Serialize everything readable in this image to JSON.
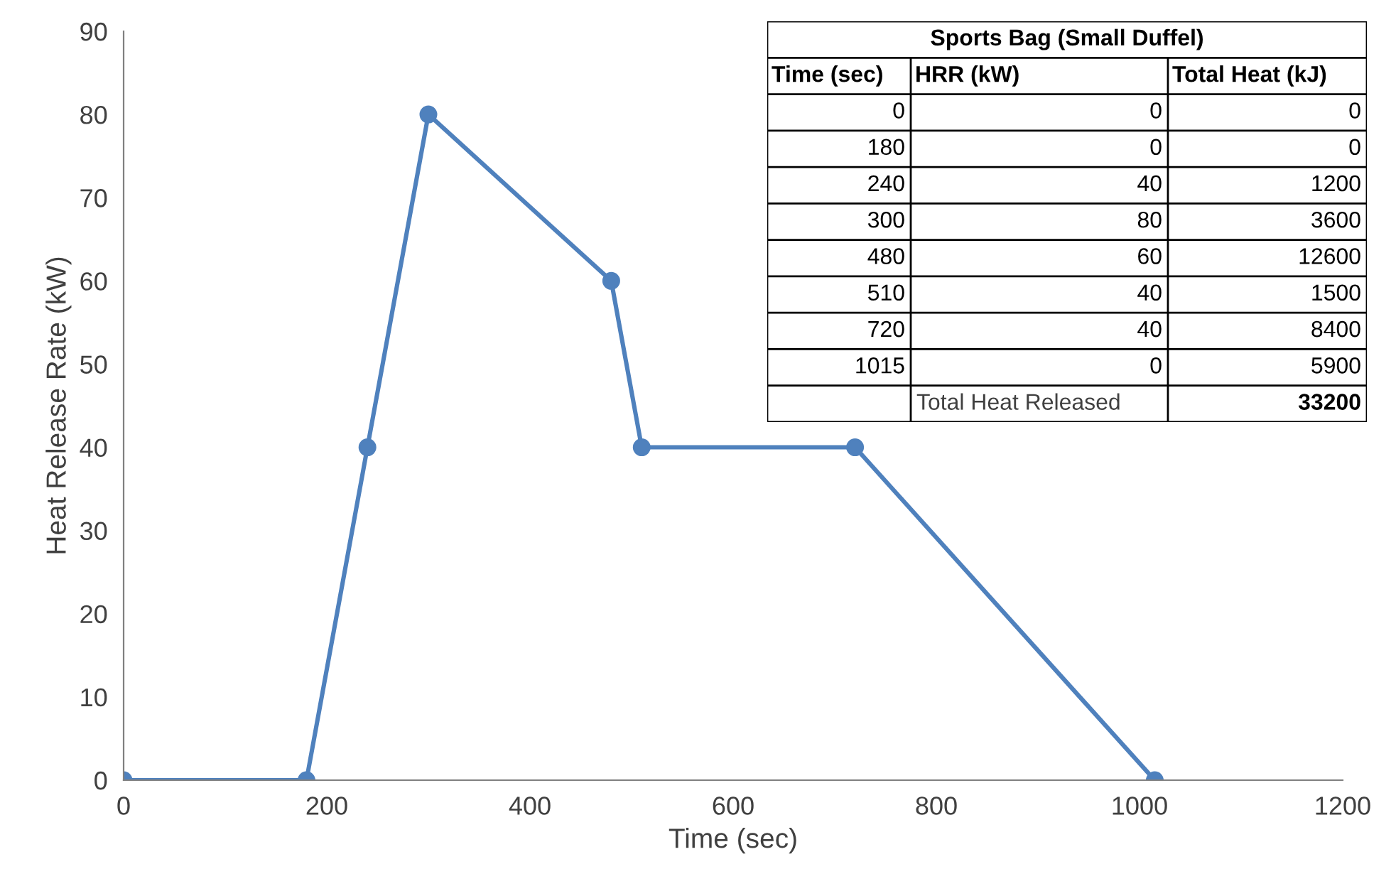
{
  "chart_data": {
    "type": "line",
    "xlabel": "Time (sec)",
    "ylabel": "Heat Release Rate (kW)",
    "x": [
      0,
      180,
      240,
      300,
      480,
      510,
      720,
      1015
    ],
    "values": [
      0,
      0,
      40,
      80,
      60,
      40,
      40,
      0
    ],
    "color": "#4f81bd",
    "marker": "circle",
    "line_style": "solid",
    "grid": false,
    "legend": false,
    "xlim": [
      0,
      1200
    ],
    "xticks": [
      0,
      200,
      400,
      600,
      800,
      1000,
      1200
    ],
    "ylim": [
      0,
      90
    ],
    "yticks": [
      0,
      10,
      20,
      30,
      40,
      50,
      60,
      70,
      80,
      90
    ],
    "annotations": [
      "Sports Bag (Small Duffel)",
      "Time (sec)",
      "HRR (kW)",
      "Total Heat (kJ)",
      "0",
      "0",
      "0",
      "180",
      "0",
      "0",
      "240",
      "40",
      "1200",
      "300",
      "80",
      "3600",
      "480",
      "60",
      "12600",
      "510",
      "40",
      "1500",
      "720",
      "40",
      "8400",
      "1015",
      "0",
      "5900",
      "Total Heat Released",
      "33200"
    ]
  }
}
